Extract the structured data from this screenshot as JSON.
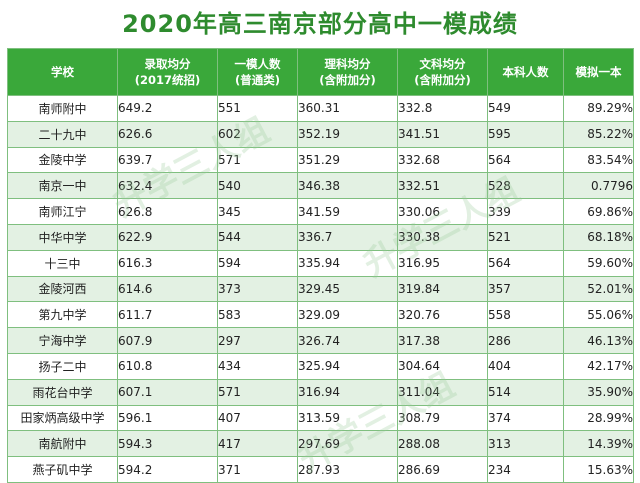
{
  "title": "2020年高三南京部分高中一模成绩",
  "headers": {
    "school": "学校",
    "admission_line1": "录取均分",
    "admission_line2": "(2017统招)",
    "mock_count_line1": "一模人数",
    "mock_count_line2": "(普通类)",
    "science_line1": "理科均分",
    "science_line2": "(含附加分)",
    "arts_line1": "文科均分",
    "arts_line2": "(含附加分)",
    "undergrad": "本科人数",
    "mock_rate": "模拟一本"
  },
  "rows": [
    {
      "school": "南师附中",
      "admission": "649.2",
      "count": "551",
      "science": "360.31",
      "arts": "332.8",
      "undergrad": "549",
      "rate": "89.29%"
    },
    {
      "school": "二十九中",
      "admission": "626.6",
      "count": "602",
      "science": "352.19",
      "arts": "341.51",
      "undergrad": "595",
      "rate": "85.22%"
    },
    {
      "school": "金陵中学",
      "admission": "639.7",
      "count": "571",
      "science": "351.29",
      "arts": "332.68",
      "undergrad": "564",
      "rate": "83.54%"
    },
    {
      "school": "南京一中",
      "admission": "632.4",
      "count": "540",
      "science": "346.38",
      "arts": "332.51",
      "undergrad": "528",
      "rate": "0.7796"
    },
    {
      "school": "南师江宁",
      "admission": "626.8",
      "count": "345",
      "science": "341.59",
      "arts": "330.06",
      "undergrad": "339",
      "rate": "69.86%"
    },
    {
      "school": "中华中学",
      "admission": "622.9",
      "count": "544",
      "science": "336.7",
      "arts": "330.38",
      "undergrad": "521",
      "rate": "68.18%"
    },
    {
      "school": "十三中",
      "admission": "616.3",
      "count": "594",
      "science": "335.94",
      "arts": "316.95",
      "undergrad": "564",
      "rate": "59.60%"
    },
    {
      "school": "金陵河西",
      "admission": "614.6",
      "count": "373",
      "science": "329.45",
      "arts": "319.84",
      "undergrad": "357",
      "rate": "52.01%"
    },
    {
      "school": "第九中学",
      "admission": "611.7",
      "count": "583",
      "science": "329.09",
      "arts": "320.76",
      "undergrad": "558",
      "rate": "55.06%"
    },
    {
      "school": "宁海中学",
      "admission": "607.9",
      "count": "297",
      "science": "326.74",
      "arts": "317.38",
      "undergrad": "286",
      "rate": "46.13%"
    },
    {
      "school": "扬子二中",
      "admission": "610.8",
      "count": "434",
      "science": "325.94",
      "arts": "304.64",
      "undergrad": "404",
      "rate": "42.17%"
    },
    {
      "school": "雨花台中学",
      "admission": "607.1",
      "count": "571",
      "science": "316.94",
      "arts": "311.04",
      "undergrad": "514",
      "rate": "35.90%"
    },
    {
      "school": "田家炳高级中学",
      "admission": "596.1",
      "count": "407",
      "science": "313.59",
      "arts": "308.79",
      "undergrad": "374",
      "rate": "28.99%"
    },
    {
      "school": "南航附中",
      "admission": "594.3",
      "count": "417",
      "science": "297.69",
      "arts": "288.08",
      "undergrad": "313",
      "rate": "14.39%"
    },
    {
      "school": "燕子矶中学",
      "admission": "594.2",
      "count": "371",
      "science": "287.93",
      "arts": "286.69",
      "undergrad": "234",
      "rate": "15.63%"
    }
  ],
  "watermark": "升学三人组"
}
